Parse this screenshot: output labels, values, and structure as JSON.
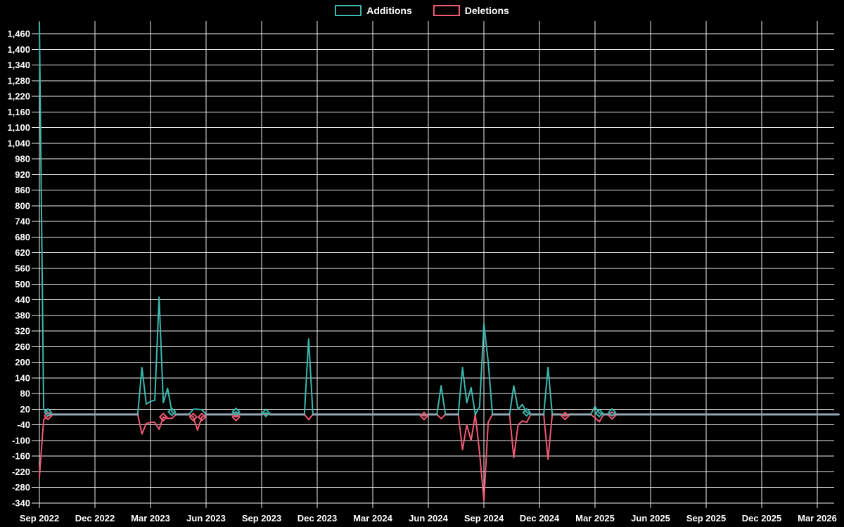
{
  "chart_data": {
    "type": "line",
    "title": "",
    "legend_position": "top-center",
    "grid": true,
    "background_color": "#000000",
    "grid_color": "#ededed",
    "axis_text_color": "#ffffff",
    "baseline_overlap_color": "#8fa8b2",
    "x_axis": {
      "unit": "week",
      "weeks_per_tick": 13,
      "total_weeks": 187,
      "tick_labels": [
        "Sep 2022",
        "Dec 2022",
        "Mar 2023",
        "Jun 2023",
        "Sep 2023",
        "Dec 2023",
        "Mar 2024",
        "Jun 2024",
        "Sep 2024",
        "Dec 2024",
        "Mar 2025",
        "Jun 2025",
        "Sep 2025",
        "Dec 2025",
        "Mar 2026"
      ]
    },
    "y_axis": {
      "min": -340,
      "max": 1460,
      "step": 60,
      "tick_labels": [
        "1,460",
        "1,400",
        "1,340",
        "1,280",
        "1,220",
        "1,160",
        "1,100",
        "1,040",
        "980",
        "920",
        "860",
        "800",
        "740",
        "680",
        "620",
        "560",
        "500",
        "440",
        "380",
        "320",
        "260",
        "200",
        "140",
        "80",
        "20",
        "-40",
        "-100",
        "-160",
        "-220",
        "-280",
        "-340"
      ]
    },
    "series": [
      {
        "name": "Additions",
        "color": "#3cb8ae"
      },
      {
        "name": "Deletions",
        "color": "#f05a73"
      }
    ],
    "default_value": 0,
    "points": [
      {
        "week": 0,
        "additions": 1500,
        "deletions": -240
      },
      {
        "week": 1,
        "additions": 20,
        "deletions": -20
      },
      {
        "week": 2,
        "additions": 8,
        "deletions": -6
      },
      {
        "week": 24,
        "additions": 180,
        "deletions": -75
      },
      {
        "week": 25,
        "additions": 40,
        "deletions": -35
      },
      {
        "week": 26,
        "additions": 50,
        "deletions": -30
      },
      {
        "week": 27,
        "additions": 55,
        "deletions": -30
      },
      {
        "week": 28,
        "additions": 450,
        "deletions": -57
      },
      {
        "week": 29,
        "additions": 45,
        "deletions": -10
      },
      {
        "week": 30,
        "additions": 100,
        "deletions": -15
      },
      {
        "week": 31,
        "additions": 10,
        "deletions": -15
      },
      {
        "week": 36,
        "additions": 20,
        "deletions": -10
      },
      {
        "week": 37,
        "additions": 20,
        "deletions": -60
      },
      {
        "week": 38,
        "additions": 18,
        "deletions": -10
      },
      {
        "week": 46,
        "additions": 10,
        "deletions": -10
      },
      {
        "week": 53,
        "additions": 6,
        "deletions": 0
      },
      {
        "week": 63,
        "additions": 290,
        "deletions": -20
      },
      {
        "week": 90,
        "additions": 0,
        "deletions": -6
      },
      {
        "week": 94,
        "additions": 110,
        "deletions": -16
      },
      {
        "week": 99,
        "additions": 180,
        "deletions": -135
      },
      {
        "week": 100,
        "additions": 45,
        "deletions": -40
      },
      {
        "week": 101,
        "additions": 103,
        "deletions": -100
      },
      {
        "week": 103,
        "additions": 30,
        "deletions": -148
      },
      {
        "week": 104,
        "additions": 348,
        "deletions": -331
      },
      {
        "week": 105,
        "additions": 202,
        "deletions": -30
      },
      {
        "week": 111,
        "additions": 110,
        "deletions": -165
      },
      {
        "week": 112,
        "additions": 20,
        "deletions": -40
      },
      {
        "week": 113,
        "additions": 38,
        "deletions": -25
      },
      {
        "week": 114,
        "additions": 8,
        "deletions": -30
      },
      {
        "week": 119,
        "additions": 181,
        "deletions": -172
      },
      {
        "week": 123,
        "additions": 0,
        "deletions": -6
      },
      {
        "week": 130,
        "additions": 31,
        "deletions": -13
      },
      {
        "week": 131,
        "additions": 5,
        "deletions": -28
      },
      {
        "week": 134,
        "additions": 8,
        "deletions": -4
      }
    ]
  }
}
